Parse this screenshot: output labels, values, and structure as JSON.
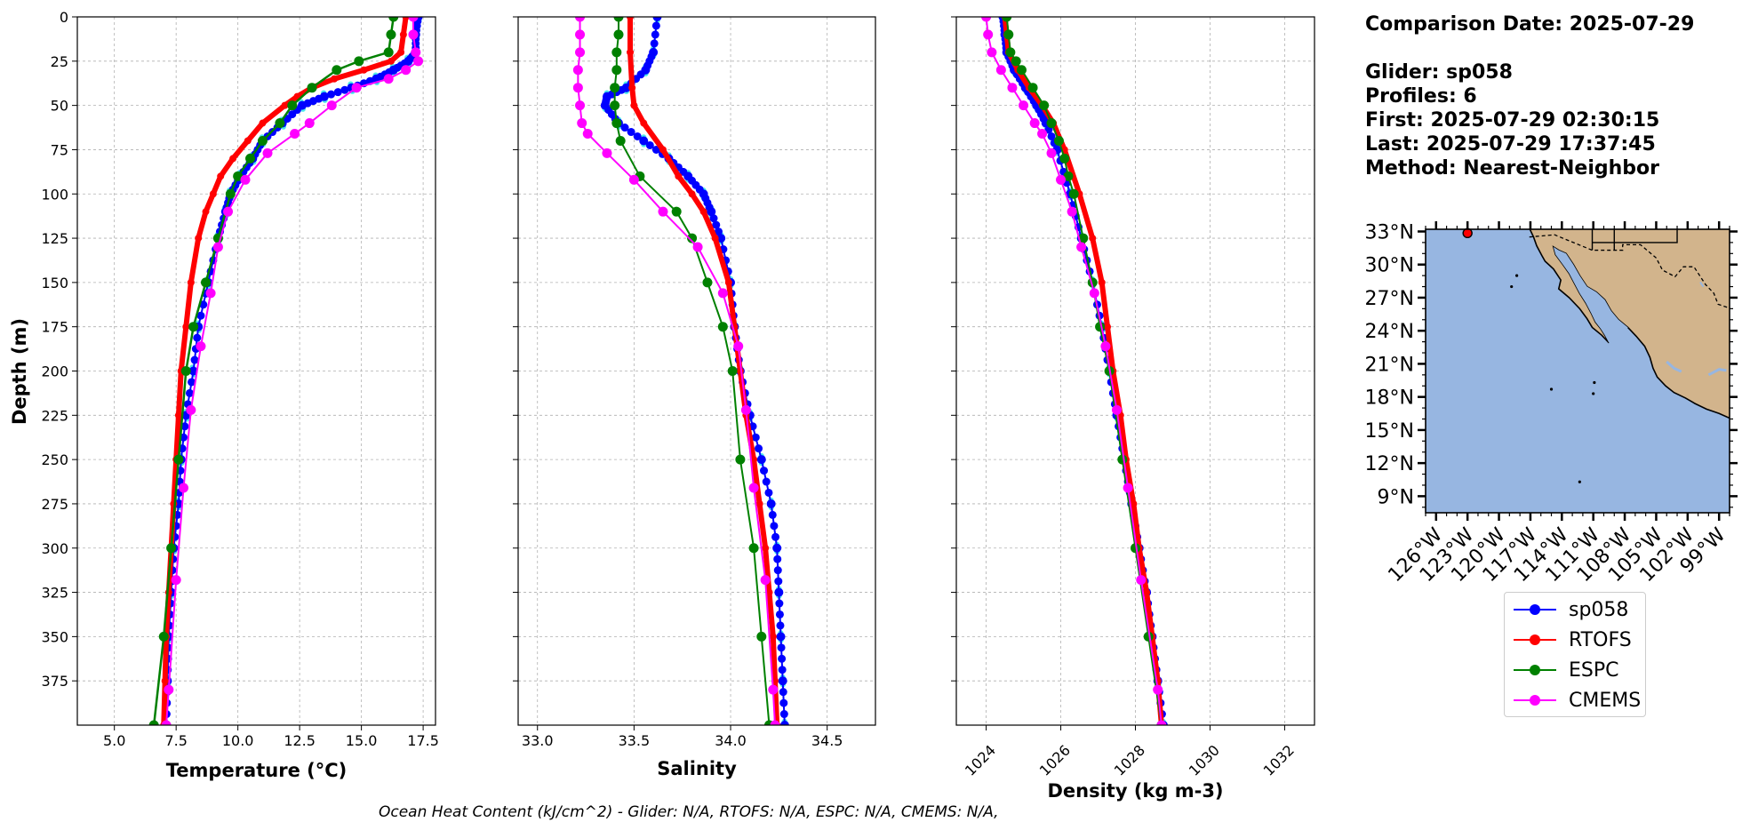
{
  "chart_data": [
    {
      "type": "line",
      "xlabel": "Temperature (°C)",
      "ylabel": "Depth (m)",
      "xlim": [
        3.5,
        18.0
      ],
      "ylim": [
        400,
        0
      ],
      "xticks": [
        "5.0",
        "7.5",
        "10.0",
        "12.5",
        "15.0",
        "17.5"
      ],
      "yticks": [
        "0",
        "25",
        "50",
        "75",
        "100",
        "125",
        "150",
        "175",
        "200",
        "225",
        "250",
        "275",
        "300",
        "325",
        "350",
        "375"
      ],
      "grid": true,
      "series": [
        {
          "name": "sp058",
          "color": "#0000ff",
          "depth": [
            0,
            10,
            20,
            25,
            30,
            35,
            40,
            45,
            50,
            60,
            70,
            80,
            90,
            100,
            110,
            125,
            150,
            175,
            200,
            225,
            250,
            275,
            300,
            325,
            350,
            375,
            400
          ],
          "values": [
            17.3,
            17.2,
            17.2,
            16.9,
            16.3,
            15.6,
            14.6,
            13.5,
            12.6,
            11.8,
            11.0,
            10.6,
            10.1,
            9.7,
            9.5,
            9.2,
            8.8,
            8.4,
            8.2,
            7.9,
            7.7,
            7.6,
            7.4,
            7.3,
            7.2,
            7.15,
            7.1
          ]
        },
        {
          "name": "RTOFS",
          "color": "#ff0000",
          "depth": [
            0,
            10,
            20,
            25,
            30,
            35,
            40,
            45,
            50,
            60,
            70,
            80,
            90,
            100,
            110,
            125,
            150,
            175,
            200,
            225,
            250,
            275,
            300,
            325,
            350,
            375,
            400
          ],
          "values": [
            16.8,
            16.7,
            16.6,
            16.2,
            15.1,
            13.9,
            13.0,
            12.4,
            11.9,
            11.0,
            10.4,
            9.8,
            9.3,
            9.0,
            8.7,
            8.4,
            8.1,
            7.9,
            7.7,
            7.6,
            7.5,
            7.4,
            7.3,
            7.2,
            7.1,
            7.05,
            7.0
          ]
        },
        {
          "name": "ESPC",
          "color": "#008000",
          "depth": [
            0,
            10,
            20,
            25,
            30,
            40,
            50,
            60,
            70,
            80,
            90,
            100,
            125,
            150,
            175,
            200,
            250,
            300,
            350,
            400
          ],
          "values": [
            16.3,
            16.2,
            16.1,
            14.9,
            14.0,
            13.0,
            12.2,
            11.7,
            11.0,
            10.5,
            10.0,
            9.7,
            9.2,
            8.7,
            8.2,
            7.9,
            7.6,
            7.3,
            7.0,
            6.6
          ]
        },
        {
          "name": "CMEMS",
          "color": "#ff00ff",
          "depth": [
            0,
            10,
            20,
            25,
            30,
            35,
            40,
            50,
            60,
            66,
            77,
            92,
            110,
            130,
            156,
            186,
            222,
            266,
            318,
            380,
            400
          ],
          "values": [
            17.1,
            17.1,
            17.2,
            17.3,
            16.8,
            16.1,
            14.8,
            13.8,
            12.9,
            12.3,
            11.2,
            10.3,
            9.6,
            9.2,
            8.9,
            8.5,
            8.1,
            7.8,
            7.5,
            7.2,
            7.1
          ]
        }
      ]
    },
    {
      "type": "line",
      "xlabel": "Salinity",
      "xlim": [
        32.9,
        34.75
      ],
      "ylim": [
        400,
        0
      ],
      "xticks": [
        "33.0",
        "33.5",
        "34.0",
        "34.5"
      ],
      "grid": true,
      "series": [
        {
          "name": "sp058",
          "color": "#0000ff",
          "depth": [
            0,
            20,
            30,
            40,
            45,
            50,
            60,
            70,
            80,
            90,
            100,
            110,
            125,
            150,
            175,
            200,
            225,
            250,
            275,
            300,
            325,
            350,
            375,
            400
          ],
          "values": [
            33.62,
            33.6,
            33.56,
            33.46,
            33.36,
            33.35,
            33.42,
            33.55,
            33.68,
            33.78,
            33.86,
            33.9,
            33.95,
            34.0,
            34.02,
            34.05,
            34.1,
            34.16,
            34.21,
            34.24,
            34.25,
            34.26,
            34.27,
            34.28
          ]
        },
        {
          "name": "RTOFS",
          "color": "#ff0000",
          "depth": [
            0,
            20,
            40,
            50,
            60,
            75,
            90,
            100,
            110,
            125,
            150,
            175,
            200,
            225,
            250,
            275,
            300,
            325,
            350,
            375,
            400
          ],
          "values": [
            33.48,
            33.48,
            33.49,
            33.5,
            33.55,
            33.65,
            33.73,
            33.8,
            33.86,
            33.92,
            33.99,
            34.02,
            34.05,
            34.08,
            34.12,
            34.15,
            34.18,
            34.2,
            34.22,
            34.23,
            34.24
          ]
        },
        {
          "name": "ESPC",
          "color": "#008000",
          "depth": [
            0,
            10,
            20,
            30,
            40,
            50,
            60,
            70,
            90,
            110,
            125,
            150,
            175,
            200,
            250,
            300,
            350,
            400
          ],
          "values": [
            33.42,
            33.42,
            33.41,
            33.41,
            33.4,
            33.4,
            33.41,
            33.43,
            33.53,
            33.72,
            33.8,
            33.88,
            33.96,
            34.01,
            34.05,
            34.12,
            34.16,
            34.2
          ]
        },
        {
          "name": "CMEMS",
          "color": "#ff00ff",
          "depth": [
            0,
            10,
            20,
            30,
            40,
            50,
            60,
            66,
            77,
            92,
            110,
            130,
            156,
            186,
            222,
            266,
            318,
            380,
            400
          ],
          "values": [
            33.22,
            33.22,
            33.22,
            33.21,
            33.21,
            33.22,
            33.23,
            33.26,
            33.36,
            33.5,
            33.65,
            33.83,
            33.96,
            34.04,
            34.08,
            34.12,
            34.18,
            34.22,
            34.23
          ]
        }
      ]
    },
    {
      "type": "line",
      "xlabel": "Density (kg m-3)",
      "xlim": [
        1023.2,
        1032.8
      ],
      "ylim": [
        400,
        0
      ],
      "xticks": [
        "1024",
        "1026",
        "1028",
        "1030",
        "1032"
      ],
      "grid": true,
      "series": [
        {
          "name": "sp058",
          "color": "#0000ff",
          "depth": [
            0,
            10,
            20,
            30,
            40,
            50,
            60,
            75,
            100,
            125,
            150,
            175,
            200,
            225,
            250,
            275,
            300,
            325,
            350,
            375,
            400
          ],
          "values": [
            1024.45,
            1024.5,
            1024.55,
            1024.75,
            1025.05,
            1025.35,
            1025.6,
            1025.9,
            1026.25,
            1026.55,
            1026.85,
            1027.1,
            1027.3,
            1027.5,
            1027.7,
            1027.9,
            1028.1,
            1028.3,
            1028.45,
            1028.6,
            1028.75
          ]
        },
        {
          "name": "RTOFS",
          "color": "#ff0000",
          "depth": [
            0,
            10,
            20,
            30,
            40,
            50,
            60,
            75,
            100,
            125,
            150,
            175,
            200,
            225,
            250,
            275,
            300,
            325,
            350,
            375,
            400
          ],
          "values": [
            1024.5,
            1024.55,
            1024.6,
            1024.85,
            1025.15,
            1025.5,
            1025.8,
            1026.1,
            1026.5,
            1026.85,
            1027.1,
            1027.25,
            1027.4,
            1027.6,
            1027.75,
            1027.95,
            1028.1,
            1028.3,
            1028.45,
            1028.6,
            1028.7
          ]
        },
        {
          "name": "ESPC",
          "color": "#008000",
          "depth": [
            0,
            10,
            20,
            25,
            30,
            40,
            50,
            60,
            70,
            80,
            90,
            100,
            125,
            150,
            175,
            200,
            250,
            300,
            350,
            400
          ],
          "values": [
            1024.55,
            1024.6,
            1024.65,
            1024.8,
            1024.95,
            1025.25,
            1025.55,
            1025.75,
            1025.95,
            1026.1,
            1026.2,
            1026.35,
            1026.6,
            1026.85,
            1027.05,
            1027.3,
            1027.65,
            1028.0,
            1028.35,
            1028.7
          ]
        },
        {
          "name": "CMEMS",
          "color": "#ff00ff",
          "depth": [
            0,
            10,
            20,
            30,
            40,
            50,
            60,
            66,
            77,
            92,
            110,
            130,
            156,
            186,
            222,
            266,
            318,
            380,
            400
          ],
          "values": [
            1024.0,
            1024.05,
            1024.15,
            1024.4,
            1024.7,
            1025.0,
            1025.3,
            1025.5,
            1025.75,
            1026.0,
            1026.3,
            1026.55,
            1026.9,
            1027.2,
            1027.5,
            1027.8,
            1028.15,
            1028.6,
            1028.7
          ]
        }
      ]
    }
  ],
  "info": {
    "lines": [
      "Comparison Date: 2025-07-29",
      "",
      "Glider: sp058",
      "Profiles: 6",
      "First: 2025-07-29 02:30:15",
      "Last: 2025-07-29 17:37:45",
      "Method: Nearest-Neighbor"
    ]
  },
  "map": {
    "lat_ticks": [
      "33°N",
      "30°N",
      "27°N",
      "24°N",
      "21°N",
      "18°N",
      "15°N",
      "12°N",
      "9°N"
    ],
    "lon_ticks": [
      "126°W",
      "123°W",
      "120°W",
      "117°W",
      "114°W",
      "111°W",
      "108°W",
      "105°W",
      "102°W",
      "99°W"
    ],
    "ocean_color": "#97b6e1",
    "land_color": "#d2b48c",
    "glider_marker_color": "#ff0000"
  },
  "legend": {
    "entries": [
      {
        "label": "sp058",
        "color": "#0000ff"
      },
      {
        "label": "RTOFS",
        "color": "#ff0000"
      },
      {
        "label": "ESPC",
        "color": "#008000"
      },
      {
        "label": "CMEMS",
        "color": "#ff00ff"
      }
    ]
  },
  "footer": {
    "text": "Ocean Heat Content (kJ/cm^2) - Glider: N/A,  RTOFS: N/A,  ESPC: N/A,  CMEMS: N/A,"
  }
}
